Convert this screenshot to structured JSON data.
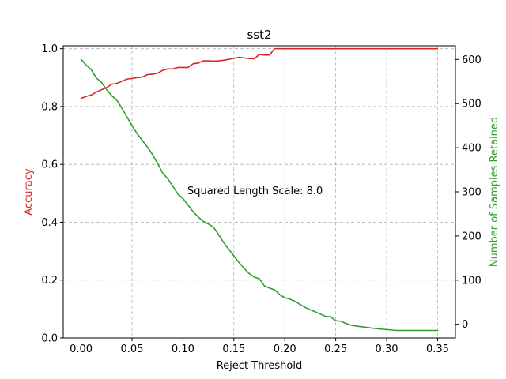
{
  "chart_data": {
    "type": "line",
    "title": "sst2",
    "xlabel": "Reject Threshold",
    "ylabel_left": "Accuracy",
    "ylabel_right": "Number of Samples Retained",
    "annotation": "Squared Length Scale: 8.0",
    "xlim": [
      -0.0175,
      0.3675
    ],
    "ylim_left": [
      0.0,
      1.01
    ],
    "ylim_right": [
      -31,
      631
    ],
    "x_ticks": [
      0.0,
      0.05,
      0.1,
      0.15,
      0.2,
      0.25,
      0.3,
      0.35
    ],
    "x_tick_labels": [
      "0.00",
      "0.05",
      "0.10",
      "0.15",
      "0.20",
      "0.25",
      "0.30",
      "0.35"
    ],
    "y_left_ticks": [
      0.0,
      0.2,
      0.4,
      0.6,
      0.8,
      1.0
    ],
    "y_left_tick_labels": [
      "0.0",
      "0.2",
      "0.4",
      "0.6",
      "0.8",
      "1.0"
    ],
    "y_right_ticks": [
      0,
      100,
      200,
      300,
      400,
      500,
      600
    ],
    "y_right_tick_labels": [
      "0",
      "100",
      "200",
      "300",
      "400",
      "500",
      "600"
    ],
    "grid": true,
    "colors": {
      "accuracy": "#d62728",
      "samples": "#2ca02c"
    },
    "series": [
      {
        "axis": "left",
        "color": "#d62728",
        "x": [
          0.0,
          0.005,
          0.01,
          0.015,
          0.02,
          0.025,
          0.03,
          0.035,
          0.04,
          0.045,
          0.05,
          0.055,
          0.06,
          0.065,
          0.07,
          0.075,
          0.08,
          0.085,
          0.09,
          0.095,
          0.1,
          0.105,
          0.11,
          0.115,
          0.12,
          0.125,
          0.13,
          0.135,
          0.14,
          0.145,
          0.15,
          0.155,
          0.16,
          0.165,
          0.17,
          0.175,
          0.18,
          0.185,
          0.19,
          0.195,
          0.2,
          0.21,
          0.22,
          0.23,
          0.24,
          0.25,
          0.26,
          0.27,
          0.28,
          0.29,
          0.3,
          0.31,
          0.32,
          0.33,
          0.34,
          0.35
        ],
        "values": [
          0.828,
          0.835,
          0.84,
          0.85,
          0.858,
          0.865,
          0.877,
          0.88,
          0.887,
          0.895,
          0.897,
          0.9,
          0.902,
          0.91,
          0.912,
          0.915,
          0.925,
          0.93,
          0.93,
          0.935,
          0.935,
          0.935,
          0.948,
          0.95,
          0.958,
          0.958,
          0.957,
          0.958,
          0.96,
          0.963,
          0.967,
          0.97,
          0.968,
          0.966,
          0.965,
          0.98,
          0.978,
          0.978,
          1.0,
          1.0,
          1.0,
          1.0,
          1.0,
          1.0,
          1.0,
          1.0,
          1.0,
          1.0,
          1.0,
          1.0,
          1.0,
          1.0,
          1.0,
          1.0,
          1.0,
          1.0
        ]
      },
      {
        "axis": "right",
        "color": "#2ca02c",
        "x": [
          0.0,
          0.005,
          0.01,
          0.015,
          0.02,
          0.025,
          0.03,
          0.035,
          0.04,
          0.045,
          0.05,
          0.055,
          0.06,
          0.065,
          0.07,
          0.075,
          0.08,
          0.085,
          0.09,
          0.095,
          0.1,
          0.105,
          0.11,
          0.115,
          0.12,
          0.125,
          0.13,
          0.135,
          0.14,
          0.145,
          0.15,
          0.155,
          0.16,
          0.165,
          0.17,
          0.175,
          0.18,
          0.185,
          0.19,
          0.195,
          0.2,
          0.205,
          0.21,
          0.215,
          0.22,
          0.225,
          0.23,
          0.235,
          0.24,
          0.245,
          0.25,
          0.255,
          0.26,
          0.265,
          0.27,
          0.28,
          0.29,
          0.3,
          0.31,
          0.32,
          0.33,
          0.34,
          0.35
        ],
        "values": [
          600,
          587,
          577,
          558,
          548,
          532,
          518,
          508,
          490,
          470,
          450,
          432,
          417,
          402,
          385,
          365,
          343,
          330,
          313,
          295,
          285,
          270,
          255,
          243,
          233,
          227,
          220,
          203,
          185,
          170,
          155,
          140,
          127,
          115,
          107,
          103,
          87,
          82,
          78,
          67,
          60,
          57,
          52,
          45,
          38,
          33,
          28,
          23,
          18,
          17,
          8,
          7,
          2,
          -2,
          -4,
          -7,
          -10,
          -12,
          -14,
          -14,
          -14,
          -14,
          -14
        ]
      }
    ]
  }
}
